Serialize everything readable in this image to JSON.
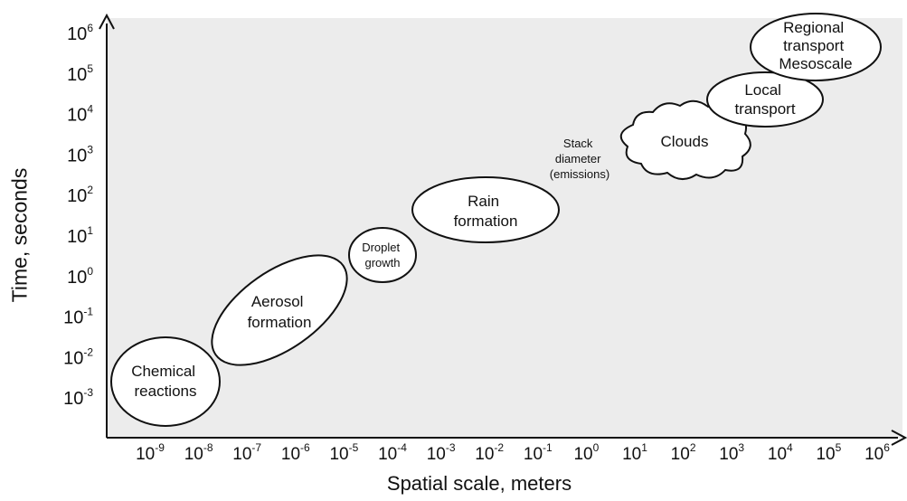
{
  "axes": {
    "y_label": "Time, seconds",
    "x_label": "Spatial scale, meters",
    "y_ticks": [
      {
        "base": "10",
        "exp": "6"
      },
      {
        "base": "10",
        "exp": "5"
      },
      {
        "base": "10",
        "exp": "4"
      },
      {
        "base": "10",
        "exp": "3"
      },
      {
        "base": "10",
        "exp": "2"
      },
      {
        "base": "10",
        "exp": "1"
      },
      {
        "base": "10",
        "exp": "0"
      },
      {
        "base": "10",
        "exp": "-1"
      },
      {
        "base": "10",
        "exp": "-2"
      },
      {
        "base": "10",
        "exp": "-3"
      }
    ],
    "x_ticks": [
      {
        "base": "10",
        "exp": "-9"
      },
      {
        "base": "10",
        "exp": "-8"
      },
      {
        "base": "10",
        "exp": "-7"
      },
      {
        "base": "10",
        "exp": "-6"
      },
      {
        "base": "10",
        "exp": "-5"
      },
      {
        "base": "10",
        "exp": "-4"
      },
      {
        "base": "10",
        "exp": "-3"
      },
      {
        "base": "10",
        "exp": "-2"
      },
      {
        "base": "10",
        "exp": "-1"
      },
      {
        "base": "10",
        "exp": "0"
      },
      {
        "base": "10",
        "exp": "1"
      },
      {
        "base": "10",
        "exp": "2"
      },
      {
        "base": "10",
        "exp": "3"
      },
      {
        "base": "10",
        "exp": "4"
      },
      {
        "base": "10",
        "exp": "5"
      },
      {
        "base": "10",
        "exp": "6"
      }
    ]
  },
  "regions": {
    "chemical_reactions": [
      "Chemical",
      "reactions"
    ],
    "aerosol_formation": [
      "Aerosol",
      "formation"
    ],
    "droplet_growth": [
      "Droplet",
      "growth"
    ],
    "rain_formation": [
      "Rain",
      "formation"
    ],
    "stack_diameter": [
      "Stack",
      "diameter",
      "(emissions)"
    ],
    "clouds": [
      "Clouds"
    ],
    "local_transport": [
      "Local",
      "transport"
    ],
    "regional_transport": [
      "Regional",
      "transport",
      "Mesoscale"
    ]
  },
  "colors": {
    "plot_background": "#ececec",
    "axis": "#111111",
    "shape_fill": "#ffffff",
    "shape_stroke": "#111111"
  }
}
